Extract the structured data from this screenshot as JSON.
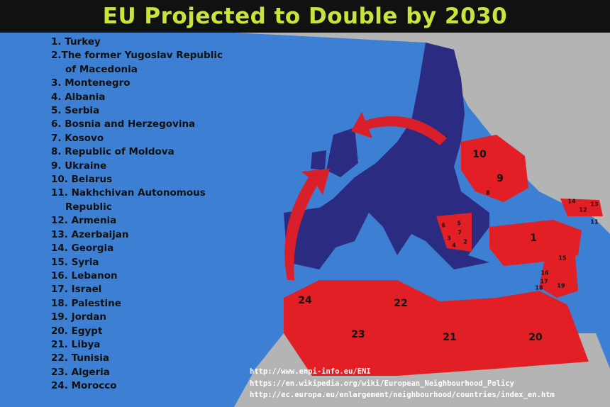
{
  "title": "EU Projected to Double by 2030",
  "list": [
    "1. Turkey",
    "2.The former Yugoslav Republic of Macedonia",
    "3. Montenegro",
    "4. Albania",
    "5. Serbia",
    "6. Bosnia and Herzegovina",
    "7. Kosovo",
    "8. Republic of Moldova",
    "9. Ukraine",
    "10. Belarus",
    "11. Nakhchivan Autonomous Republic",
    "12. Armenia",
    "13. Azerbaijan",
    "14. Georgia",
    "15. Syria",
    "16. Lebanon",
    "17. Israel",
    "18. Palestine",
    "19. Jordan",
    "20. Egypt",
    "21. Libya",
    "22. Tunisia",
    "23. Algeria",
    "24. Morocco"
  ],
  "map_labels": [
    "10",
    "9",
    "8",
    "14",
    "12",
    "13",
    "11",
    "6",
    "5",
    "7",
    "3",
    "4",
    "2",
    "1",
    "15",
    "16",
    "17",
    "18",
    "19",
    "24",
    "22",
    "23",
    "21",
    "20"
  ],
  "links": [
    "http://www.enpi-info.eu/ENI",
    "https://en.wikipedia.org/wiki/European_Neighbourhood_Policy",
    "http://ec.europa.eu/enlargement/neighbourhood/countries/index_en.htm"
  ]
}
